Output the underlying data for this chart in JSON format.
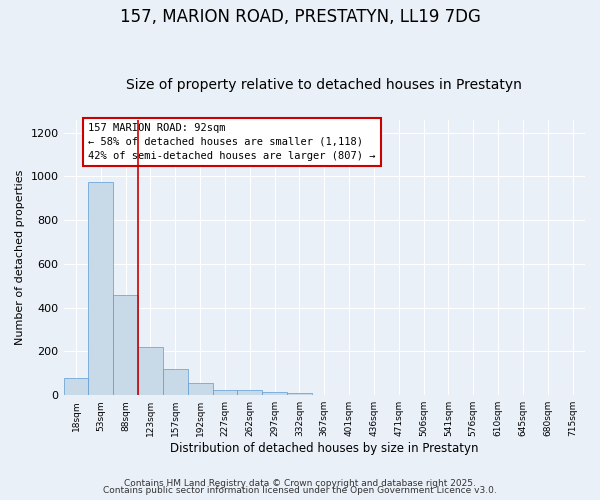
{
  "title1": "157, MARION ROAD, PRESTATYN, LL19 7DG",
  "title2": "Size of property relative to detached houses in Prestatyn",
  "xlabel": "Distribution of detached houses by size in Prestatyn",
  "ylabel": "Number of detached properties",
  "bin_labels": [
    "18sqm",
    "53sqm",
    "88sqm",
    "123sqm",
    "157sqm",
    "192sqm",
    "227sqm",
    "262sqm",
    "297sqm",
    "332sqm",
    "367sqm",
    "401sqm",
    "436sqm",
    "471sqm",
    "506sqm",
    "541sqm",
    "576sqm",
    "610sqm",
    "645sqm",
    "680sqm",
    "715sqm"
  ],
  "values": [
    80,
    975,
    460,
    220,
    120,
    55,
    25,
    22,
    15,
    10,
    0,
    0,
    0,
    0,
    0,
    0,
    0,
    0,
    0,
    0,
    0
  ],
  "bar_color": "#c8d9e8",
  "bar_edge_color": "#5b9bd5",
  "bar_width": 1.0,
  "red_line_x": 2.5,
  "red_line_color": "#cc0000",
  "annotation_text": "157 MARION ROAD: 92sqm\n← 58% of detached houses are smaller (1,118)\n42% of semi-detached houses are larger (807) →",
  "annotation_box_color": "white",
  "annotation_box_edge_color": "#cc0000",
  "ylim": [
    0,
    1260
  ],
  "yticks": [
    0,
    200,
    400,
    600,
    800,
    1000,
    1200
  ],
  "background_color": "#eaf0f8",
  "grid_color": "white",
  "footer1": "Contains HM Land Registry data © Crown copyright and database right 2025.",
  "footer2": "Contains public sector information licensed under the Open Government Licence v3.0.",
  "title_fontsize": 12,
  "subtitle_fontsize": 10,
  "annotation_fontsize": 7.5,
  "footer_fontsize": 6.5,
  "ylabel_fontsize": 8,
  "xlabel_fontsize": 8.5
}
